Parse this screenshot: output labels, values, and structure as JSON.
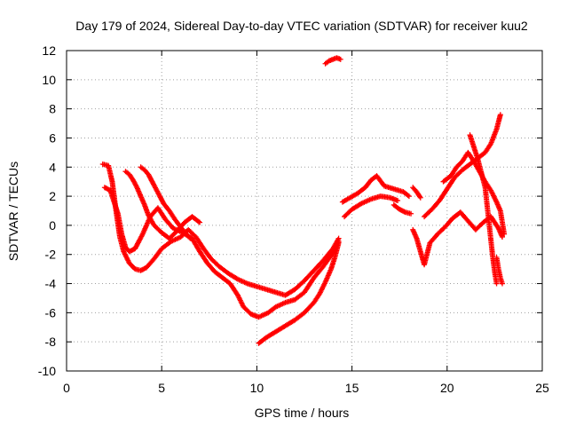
{
  "chart_data": {
    "type": "scatter",
    "title": "Day 179 of 2024, Sidereal Day-to-day VTEC variation (SDTVAR) for receiver kuu2",
    "xlabel": "GPS time / hours",
    "ylabel": "SDTVAR / TECUs",
    "xlim": [
      0,
      25
    ],
    "ylim": [
      -10,
      12
    ],
    "xticks": [
      0,
      5,
      10,
      15,
      20,
      25
    ],
    "xtick_labels": [
      "0",
      "5",
      "10",
      "15",
      "20",
      "25"
    ],
    "yticks": [
      -10,
      -8,
      -6,
      -4,
      -2,
      0,
      2,
      4,
      6,
      8,
      10,
      12
    ],
    "ytick_labels": [
      "-10",
      "-8",
      "-6",
      "-4",
      "-2",
      "0",
      "2",
      "4",
      "6",
      "8",
      "10",
      "12"
    ],
    "grid": true,
    "marker": "+",
    "color": "#ff0000",
    "series": [
      {
        "name": "trace-a",
        "points": [
          [
            1.9,
            4.2
          ],
          [
            2.2,
            4.1
          ],
          [
            2.4,
            3.0
          ],
          [
            2.6,
            1.0
          ],
          [
            2.8,
            -0.8
          ],
          [
            3.0,
            -1.8
          ],
          [
            3.3,
            -2.6
          ],
          [
            3.6,
            -3.0
          ],
          [
            3.9,
            -3.1
          ],
          [
            4.2,
            -2.9
          ],
          [
            4.6,
            -2.3
          ],
          [
            5.0,
            -1.6
          ],
          [
            5.5,
            -1.1
          ],
          [
            6.0,
            -0.8
          ],
          [
            6.4,
            -0.3
          ],
          [
            6.8,
            -0.8
          ],
          [
            7.2,
            -1.6
          ],
          [
            7.6,
            -2.3
          ],
          [
            8.0,
            -2.8
          ],
          [
            8.5,
            -3.3
          ],
          [
            9.0,
            -3.7
          ],
          [
            9.5,
            -4.0
          ],
          [
            10.0,
            -4.2
          ],
          [
            10.5,
            -4.4
          ],
          [
            11.0,
            -4.6
          ],
          [
            11.5,
            -4.8
          ],
          [
            12.0,
            -4.4
          ],
          [
            12.5,
            -3.8
          ],
          [
            13.0,
            -3.1
          ],
          [
            13.5,
            -2.4
          ],
          [
            14.0,
            -1.6
          ],
          [
            14.3,
            -0.9
          ]
        ]
      },
      {
        "name": "trace-b",
        "points": [
          [
            2.0,
            2.6
          ],
          [
            2.3,
            2.4
          ],
          [
            2.5,
            1.6
          ],
          [
            2.7,
            0.8
          ],
          [
            2.9,
            -0.6
          ],
          [
            3.1,
            -1.5
          ],
          [
            3.3,
            -1.8
          ],
          [
            3.6,
            -1.6
          ],
          [
            4.0,
            -0.6
          ],
          [
            4.4,
            0.6
          ],
          [
            4.8,
            1.2
          ],
          [
            5.2,
            0.4
          ],
          [
            5.6,
            -0.2
          ],
          [
            6.1,
            -0.5
          ],
          [
            6.6,
            -0.9
          ],
          [
            7.0,
            -1.8
          ],
          [
            7.4,
            -2.6
          ],
          [
            7.8,
            -3.2
          ],
          [
            8.2,
            -3.6
          ],
          [
            8.6,
            -4.0
          ],
          [
            9.0,
            -4.8
          ],
          [
            9.3,
            -5.6
          ],
          [
            9.7,
            -6.1
          ],
          [
            10.1,
            -6.3
          ],
          [
            10.6,
            -6.0
          ],
          [
            11.0,
            -5.6
          ],
          [
            11.5,
            -5.3
          ],
          [
            12.0,
            -5.1
          ],
          [
            12.5,
            -4.6
          ],
          [
            13.0,
            -3.6
          ],
          [
            13.5,
            -2.8
          ],
          [
            14.0,
            -1.9
          ],
          [
            14.3,
            -1.1
          ]
        ]
      },
      {
        "name": "trace-c",
        "points": [
          [
            3.1,
            3.7
          ],
          [
            3.3,
            3.5
          ],
          [
            3.5,
            3.1
          ],
          [
            3.7,
            2.6
          ],
          [
            3.9,
            2.0
          ],
          [
            4.1,
            1.4
          ],
          [
            4.3,
            0.7
          ],
          [
            4.6,
            0.0
          ],
          [
            5.0,
            -0.5
          ],
          [
            5.4,
            -0.9
          ],
          [
            5.8,
            -0.4
          ],
          [
            6.2,
            0.2
          ],
          [
            6.6,
            0.6
          ],
          [
            7.0,
            0.2
          ]
        ]
      },
      {
        "name": "trace-d",
        "points": [
          [
            3.9,
            4.0
          ],
          [
            4.1,
            3.8
          ],
          [
            4.3,
            3.5
          ],
          [
            4.5,
            3.0
          ],
          [
            4.7,
            2.5
          ],
          [
            4.9,
            2.0
          ],
          [
            5.1,
            1.5
          ],
          [
            5.4,
            1.0
          ],
          [
            5.7,
            0.4
          ],
          [
            6.1,
            -0.3
          ],
          [
            6.5,
            -0.9
          ]
        ]
      },
      {
        "name": "trace-e",
        "points": [
          [
            10.1,
            -8.1
          ],
          [
            10.5,
            -7.7
          ],
          [
            11.0,
            -7.3
          ],
          [
            11.5,
            -6.9
          ],
          [
            12.0,
            -6.5
          ],
          [
            12.5,
            -6.0
          ],
          [
            13.0,
            -5.3
          ],
          [
            13.3,
            -4.7
          ],
          [
            13.6,
            -3.9
          ],
          [
            13.9,
            -3.0
          ],
          [
            14.1,
            -2.2
          ],
          [
            14.3,
            -1.2
          ]
        ]
      },
      {
        "name": "trace-f",
        "points": [
          [
            13.6,
            11.1
          ],
          [
            13.8,
            11.3
          ],
          [
            14.0,
            11.4
          ],
          [
            14.2,
            11.5
          ],
          [
            14.4,
            11.4
          ]
        ]
      },
      {
        "name": "trace-g",
        "points": [
          [
            14.5,
            1.6
          ],
          [
            14.9,
            1.9
          ],
          [
            15.3,
            2.2
          ],
          [
            15.7,
            2.6
          ],
          [
            16.0,
            3.1
          ],
          [
            16.3,
            3.4
          ],
          [
            16.7,
            2.7
          ],
          [
            17.2,
            2.5
          ],
          [
            17.7,
            2.3
          ],
          [
            18.0,
            2.0
          ]
        ]
      },
      {
        "name": "trace-h",
        "points": [
          [
            14.6,
            0.6
          ],
          [
            15.0,
            1.1
          ],
          [
            15.5,
            1.5
          ],
          [
            16.0,
            1.8
          ],
          [
            16.5,
            2.0
          ],
          [
            17.0,
            1.9
          ],
          [
            17.4,
            1.7
          ]
        ]
      },
      {
        "name": "trace-i",
        "points": [
          [
            17.2,
            1.4
          ],
          [
            17.5,
            1.1
          ],
          [
            17.8,
            0.9
          ],
          [
            18.1,
            0.8
          ]
        ]
      },
      {
        "name": "trace-j",
        "points": [
          [
            18.2,
            2.6
          ],
          [
            18.4,
            2.3
          ],
          [
            18.6,
            1.9
          ]
        ]
      },
      {
        "name": "trace-k",
        "points": [
          [
            18.2,
            -0.3
          ],
          [
            18.4,
            -0.9
          ],
          [
            18.6,
            -1.8
          ],
          [
            18.8,
            -2.7
          ],
          [
            19.1,
            -1.2
          ],
          [
            19.5,
            -0.6
          ],
          [
            19.9,
            -0.1
          ],
          [
            20.3,
            0.5
          ],
          [
            20.7,
            0.9
          ],
          [
            21.1,
            0.3
          ],
          [
            21.5,
            -0.3
          ],
          [
            21.9,
            0.2
          ],
          [
            22.3,
            0.6
          ],
          [
            22.7,
            -0.2
          ],
          [
            22.9,
            -0.8
          ]
        ]
      },
      {
        "name": "trace-l",
        "points": [
          [
            18.8,
            0.6
          ],
          [
            19.2,
            1.1
          ],
          [
            19.6,
            1.7
          ],
          [
            20.0,
            2.5
          ],
          [
            20.4,
            3.3
          ],
          [
            20.8,
            3.8
          ],
          [
            21.2,
            4.2
          ],
          [
            21.6,
            4.6
          ],
          [
            22.0,
            5.0
          ],
          [
            22.3,
            5.6
          ],
          [
            22.6,
            6.6
          ],
          [
            22.8,
            7.6
          ]
        ]
      },
      {
        "name": "trace-m",
        "points": [
          [
            19.8,
            3.0
          ],
          [
            20.2,
            3.4
          ],
          [
            20.5,
            4.0
          ],
          [
            20.8,
            4.4
          ],
          [
            21.1,
            5.0
          ],
          [
            21.4,
            4.4
          ],
          [
            21.7,
            3.7
          ],
          [
            22.0,
            3.0
          ],
          [
            22.3,
            2.4
          ],
          [
            22.6,
            1.6
          ],
          [
            22.8,
            1.0
          ],
          [
            22.9,
            0.2
          ],
          [
            23.0,
            -0.6
          ]
        ]
      },
      {
        "name": "trace-n",
        "points": [
          [
            21.2,
            6.2
          ],
          [
            21.4,
            5.4
          ],
          [
            21.6,
            4.6
          ],
          [
            21.8,
            3.6
          ],
          [
            22.0,
            2.6
          ],
          [
            22.1,
            1.4
          ],
          [
            22.2,
            0.2
          ],
          [
            22.3,
            -1.0
          ],
          [
            22.4,
            -2.2
          ],
          [
            22.5,
            -3.2
          ],
          [
            22.6,
            -4.0
          ]
        ]
      },
      {
        "name": "trace-o",
        "points": [
          [
            22.6,
            -2.2
          ],
          [
            22.7,
            -3.0
          ],
          [
            22.8,
            -3.6
          ],
          [
            22.9,
            -4.0
          ]
        ]
      }
    ]
  }
}
